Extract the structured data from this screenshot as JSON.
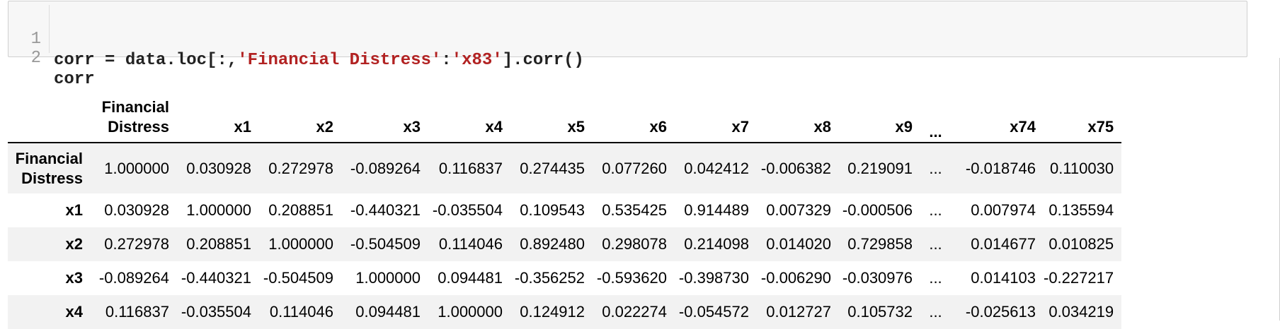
{
  "code": {
    "lines": [
      {
        "num": "1",
        "pre": "corr = data.loc[:,",
        "str1": "'Financial Distress'",
        "mid": ":",
        "str2": "'x83'",
        "post": "].corr()"
      },
      {
        "num": "2",
        "pre": "corr",
        "str1": "",
        "mid": "",
        "str2": "",
        "post": ""
      }
    ]
  },
  "table": {
    "columns": [
      "Financial\nDistress",
      "x1",
      "x2",
      "x3",
      "x4",
      "x5",
      "x6",
      "x7",
      "x8",
      "x9",
      "...",
      "x74",
      "x75"
    ],
    "rows": [
      {
        "label": "Financial\nDistress",
        "values": [
          "1.000000",
          "0.030928",
          "0.272978",
          "-0.089264",
          "0.116837",
          "0.274435",
          "0.077260",
          "0.042412",
          "-0.006382",
          "0.219091",
          "...",
          "-0.018746",
          "0.110030"
        ]
      },
      {
        "label": "x1",
        "values": [
          "0.030928",
          "1.000000",
          "0.208851",
          "-0.440321",
          "-0.035504",
          "0.109543",
          "0.535425",
          "0.914489",
          "0.007329",
          "-0.000506",
          "...",
          "0.007974",
          "0.135594"
        ]
      },
      {
        "label": "x2",
        "values": [
          "0.272978",
          "0.208851",
          "1.000000",
          "-0.504509",
          "0.114046",
          "0.892480",
          "0.298078",
          "0.214098",
          "0.014020",
          "0.729858",
          "...",
          "0.014677",
          "0.010825"
        ]
      },
      {
        "label": "x3",
        "values": [
          "-0.089264",
          "-0.440321",
          "-0.504509",
          "1.000000",
          "0.094481",
          "-0.356252",
          "-0.593620",
          "-0.398730",
          "-0.006290",
          "-0.030976",
          "...",
          "0.014103",
          "-0.227217"
        ]
      },
      {
        "label": "x4",
        "values": [
          "0.116837",
          "-0.035504",
          "0.114046",
          "0.094481",
          "1.000000",
          "0.124912",
          "0.022274",
          "-0.054572",
          "0.012727",
          "0.105732",
          "...",
          "-0.025613",
          "0.034219"
        ]
      }
    ]
  }
}
